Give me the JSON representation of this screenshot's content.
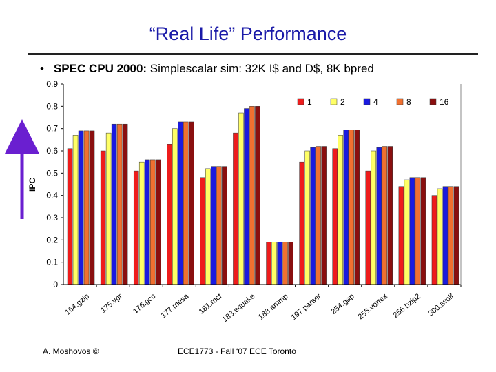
{
  "slide": {
    "title": "“Real Life” Performance",
    "bullet_marker": "•",
    "bullet_bold": "SPEC CPU 2000:",
    "bullet_rest": " Simplescalar sim: 32K I$ and D$, 8K bpred",
    "footer_left": "A. Moshovos ©",
    "footer_center": "ECE1773 - Fall ‘07 ECE Toronto",
    "arrow_color": "#6a1fd0"
  },
  "chart_data": {
    "type": "bar",
    "title": "",
    "xlabel": "",
    "ylabel": "IPC",
    "ylim": [
      0,
      0.9
    ],
    "yticks": [
      0,
      0.1,
      0.2,
      0.3,
      0.4,
      0.5,
      0.6,
      0.7,
      0.8,
      0.9
    ],
    "ytick_labels": [
      "0",
      "0.1",
      "0.2",
      "0.3",
      "0.4",
      "0.5",
      "0.6",
      "0.7",
      "0.8",
      "0.9"
    ],
    "grid": false,
    "legend_position": "top-right",
    "categories": [
      "164.gzip",
      "175.vpr",
      "176.gcc",
      "177.mesa",
      "181.mcf",
      "183.equake",
      "188.ammp",
      "197.parser",
      "254.gap",
      "255.vortex",
      "256.bzip2",
      "300.twolf"
    ],
    "series": [
      {
        "name": "1",
        "color": "#ee1c1c",
        "values": [
          0.61,
          0.6,
          0.51,
          0.63,
          0.48,
          0.68,
          0.19,
          0.55,
          0.61,
          0.51,
          0.44,
          0.4
        ]
      },
      {
        "name": "2",
        "color": "#ffff66",
        "values": [
          0.67,
          0.68,
          0.55,
          0.7,
          0.52,
          0.77,
          0.19,
          0.6,
          0.67,
          0.6,
          0.47,
          0.43
        ]
      },
      {
        "name": "4",
        "color": "#1a1ae0",
        "values": [
          0.69,
          0.72,
          0.56,
          0.73,
          0.53,
          0.79,
          0.19,
          0.615,
          0.695,
          0.615,
          0.48,
          0.44
        ]
      },
      {
        "name": "8",
        "color": "#f07030",
        "values": [
          0.69,
          0.72,
          0.56,
          0.73,
          0.53,
          0.8,
          0.19,
          0.62,
          0.695,
          0.62,
          0.48,
          0.44
        ]
      },
      {
        "name": "16",
        "color": "#8a0f0f",
        "values": [
          0.69,
          0.72,
          0.56,
          0.73,
          0.53,
          0.8,
          0.19,
          0.62,
          0.695,
          0.62,
          0.48,
          0.44
        ]
      }
    ]
  }
}
